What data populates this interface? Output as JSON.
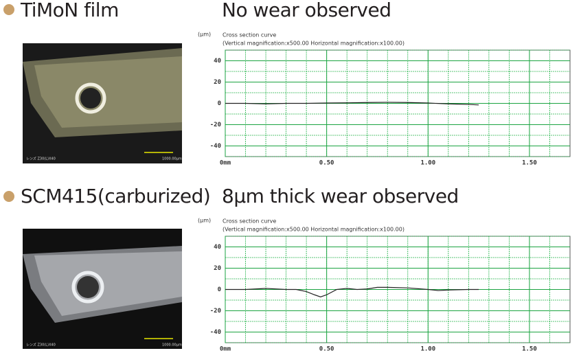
{
  "chart_data": [
    {
      "type": "line",
      "sample": "TiMoN film",
      "result": "No wear observed",
      "photo_lens": "レンズ Z30(L)X40",
      "photo_scale": "1000.00μm",
      "y_unit": "(μm)",
      "title": "Cross section curve",
      "subtitle": "(Vertical magnification:x500.00  Horizontal magnification:x100.00)",
      "xlim": [
        0,
        1.7
      ],
      "xticks": [
        {
          "value": 0,
          "label": "0mm"
        },
        {
          "value": 0.5,
          "label": "0.50"
        },
        {
          "value": 1,
          "label": "1.00"
        },
        {
          "value": 1.5,
          "label": "1.50"
        }
      ],
      "ylim": [
        -50,
        50
      ],
      "yticks": [
        40,
        20,
        0,
        -20,
        -40
      ],
      "grid": true,
      "color": "#222222",
      "x": [
        0,
        0.1,
        0.2,
        0.3,
        0.4,
        0.5,
        0.6,
        0.7,
        0.8,
        0.9,
        1.0,
        1.1,
        1.2,
        1.25
      ],
      "values": [
        0,
        0,
        -0.5,
        0,
        0,
        0.3,
        0.5,
        0.8,
        1,
        0.8,
        0.3,
        -0.5,
        -1,
        -1.5
      ]
    },
    {
      "type": "line",
      "sample": "SCM415(carburized)",
      "result": "8μm thick wear observed",
      "photo_lens": "レンズ Z30(L)X40",
      "photo_scale": "1000.00μm",
      "y_unit": "(μm)",
      "title": "Cross section curve",
      "subtitle": "(Vertical magnification:x500.00  Horizontal magnification:x100.00)",
      "xlim": [
        0,
        1.7
      ],
      "xticks": [
        {
          "value": 0,
          "label": "0mm"
        },
        {
          "value": 0.5,
          "label": "0.50"
        },
        {
          "value": 1,
          "label": "1.00"
        },
        {
          "value": 1.5,
          "label": "1.50"
        }
      ],
      "ylim": [
        -50,
        50
      ],
      "yticks": [
        40,
        20,
        0,
        -20,
        -40
      ],
      "grid": true,
      "color": "#222222",
      "x": [
        0,
        0.1,
        0.2,
        0.3,
        0.35,
        0.4,
        0.44,
        0.47,
        0.5,
        0.55,
        0.6,
        0.65,
        0.7,
        0.75,
        0.8,
        0.9,
        1.0,
        1.05,
        1.1,
        1.2,
        1.25
      ],
      "values": [
        0,
        0,
        1,
        0,
        0,
        -2,
        -5,
        -7,
        -5,
        0,
        1,
        0,
        0.5,
        2,
        2,
        1.5,
        0,
        -1,
        -0.5,
        0,
        0
      ]
    }
  ]
}
